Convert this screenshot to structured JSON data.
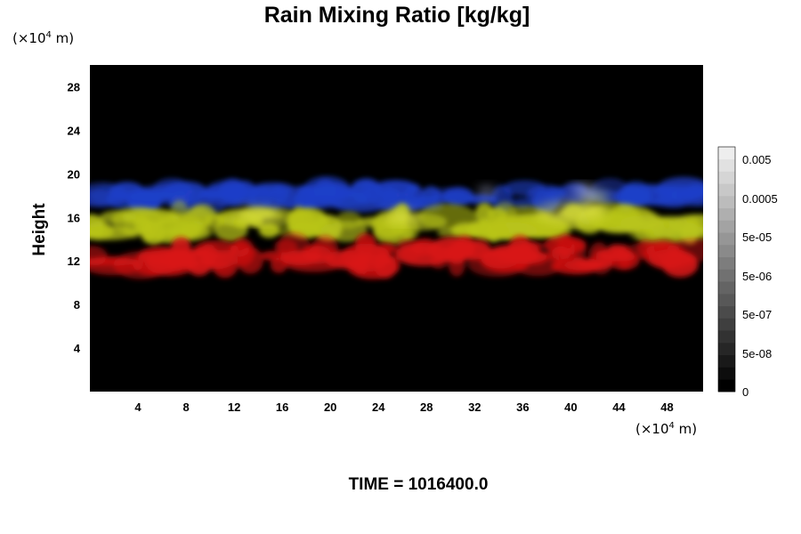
{
  "chart_data": {
    "type": "heatmap",
    "title": "Rain Mixing Ratio [kg/kg]",
    "ylabel": "Height",
    "x_unit": {
      "prefix": "(×10",
      "exp": "4",
      "suffix": " m)"
    },
    "y_unit": {
      "prefix": "(×10",
      "exp": "4",
      "suffix": " m)"
    },
    "xlim": [
      0,
      51
    ],
    "ylim": [
      0,
      30
    ],
    "x_ticks": [
      4,
      8,
      12,
      16,
      20,
      24,
      28,
      32,
      36,
      40,
      44,
      48
    ],
    "y_ticks": [
      4,
      8,
      12,
      16,
      20,
      24,
      28
    ],
    "colorbar": {
      "labels": [
        "0.005",
        "0.0005",
        "5e-05",
        "5e-06",
        "5e-07",
        "5e-08",
        "0"
      ],
      "levels": 20
    },
    "background_color": "#000000",
    "layers": [
      {
        "color": "#1f3fc8",
        "y_range": [
          16.5,
          19.5
        ]
      },
      {
        "color": "#b8c41a",
        "y_range": [
          13.5,
          17.5
        ]
      },
      {
        "color": "#d81414",
        "y_range": [
          10.5,
          14.5
        ]
      }
    ],
    "footer": "TIME = 1016400.0"
  }
}
